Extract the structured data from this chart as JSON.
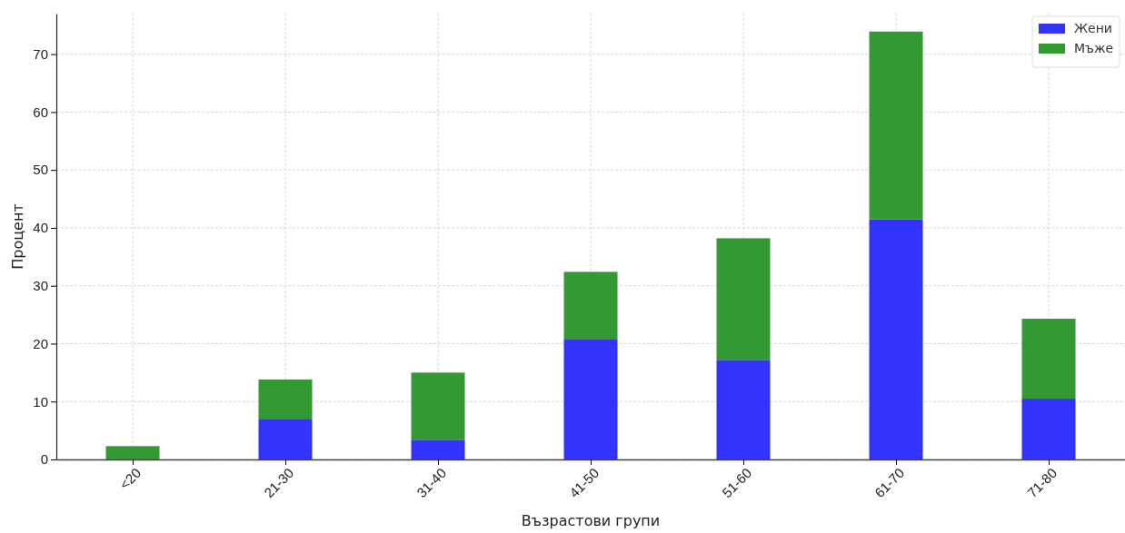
{
  "chart_data": {
    "type": "bar",
    "stacked": true,
    "xlabel": "Възрастови групи",
    "ylabel": "Процент",
    "categories": [
      "<20",
      "21-30",
      "31-40",
      "41-50",
      "51-60",
      "61-70",
      "71-80"
    ],
    "series": [
      {
        "name": "Жени",
        "color": "#3333ff",
        "values": [
          0,
          6.9,
          3.4,
          20.7,
          17.2,
          41.5,
          10.5
        ]
      },
      {
        "name": "Мъже",
        "color": "#339933",
        "values": [
          2.3,
          6.9,
          11.6,
          11.7,
          21.0,
          32.4,
          13.8
        ]
      }
    ],
    "ylim": [
      0,
      77
    ],
    "yticks": [
      0,
      10,
      20,
      30,
      40,
      50,
      60,
      70
    ],
    "grid": true,
    "legend": "top right"
  }
}
